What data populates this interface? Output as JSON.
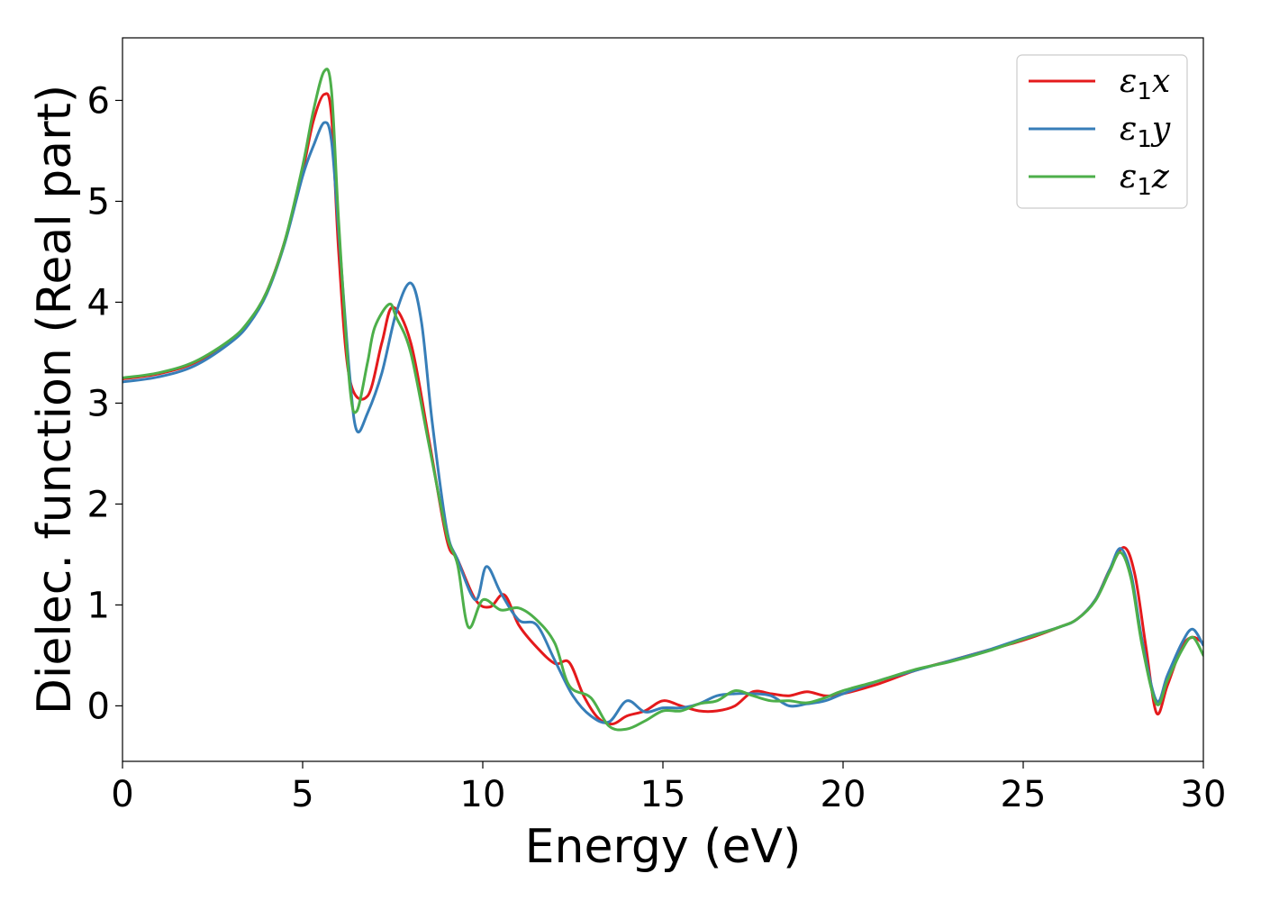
{
  "chart_data": {
    "type": "line",
    "title": "",
    "xlabel": "Energy (eV)",
    "ylabel": "Dielec. function (Real part)",
    "xlim": [
      0,
      30
    ],
    "ylim": [
      -0.55,
      6.62
    ],
    "xticks": [
      0,
      5,
      10,
      15,
      20,
      25,
      30
    ],
    "yticks": [
      0,
      1,
      2,
      3,
      4,
      5,
      6
    ],
    "grid": false,
    "legend_position": "top-right",
    "series": [
      {
        "name": "ε1x",
        "symbol": "ε",
        "sub": "1",
        "suffix": "x",
        "color": "#e41a1c",
        "x": [
          0,
          1,
          2,
          3,
          3.5,
          4,
          4.5,
          5,
          5.3,
          5.6,
          5.8,
          6.0,
          6.3,
          6.8,
          7.2,
          7.5,
          8.0,
          8.5,
          9.0,
          9.3,
          9.8,
          10.2,
          10.6,
          11.0,
          11.5,
          12.0,
          12.4,
          12.8,
          13.2,
          13.6,
          14.0,
          14.5,
          15.0,
          15.5,
          16.0,
          16.5,
          17.0,
          17.5,
          18.0,
          18.5,
          19.0,
          19.5,
          20.0,
          21.0,
          22.0,
          23.0,
          24.0,
          25.0,
          26.0,
          26.5,
          27.0,
          27.4,
          27.8,
          28.1,
          28.4,
          28.7,
          29.0,
          29.4,
          29.7,
          30.0
        ],
        "y": [
          3.24,
          3.29,
          3.4,
          3.62,
          3.8,
          4.1,
          4.6,
          5.3,
          5.8,
          6.06,
          5.85,
          4.5,
          3.25,
          3.07,
          3.6,
          3.95,
          3.6,
          2.65,
          1.65,
          1.45,
          1.05,
          0.98,
          1.1,
          0.8,
          0.58,
          0.42,
          0.43,
          0.1,
          -0.12,
          -0.18,
          -0.1,
          -0.05,
          0.05,
          0.0,
          -0.05,
          -0.05,
          0.0,
          0.14,
          0.12,
          0.1,
          0.14,
          0.1,
          0.12,
          0.22,
          0.35,
          0.45,
          0.55,
          0.65,
          0.78,
          0.86,
          1.05,
          1.35,
          1.57,
          1.3,
          0.6,
          -0.07,
          0.2,
          0.58,
          0.68,
          0.62
        ]
      },
      {
        "name": "ε1y",
        "symbol": "ε",
        "sub": "1",
        "suffix": "y",
        "color": "#377eb8",
        "x": [
          0,
          1,
          2,
          3,
          3.5,
          4,
          4.5,
          5,
          5.3,
          5.6,
          5.8,
          6.0,
          6.3,
          6.5,
          6.8,
          7.2,
          7.6,
          8.0,
          8.3,
          8.6,
          9.0,
          9.3,
          9.8,
          10.1,
          10.5,
          11.0,
          11.5,
          12.0,
          12.5,
          13.0,
          13.5,
          14.0,
          14.5,
          15.0,
          15.5,
          16.0,
          16.5,
          17.0,
          17.5,
          18.0,
          18.5,
          19.0,
          19.5,
          20.0,
          21.0,
          22.0,
          23.0,
          24.0,
          25.0,
          26.0,
          26.5,
          27.0,
          27.4,
          27.7,
          28.0,
          28.3,
          28.7,
          29.0,
          29.4,
          29.7,
          30.0
        ],
        "y": [
          3.21,
          3.26,
          3.37,
          3.6,
          3.78,
          4.08,
          4.58,
          5.25,
          5.55,
          5.78,
          5.6,
          4.7,
          3.3,
          2.73,
          2.9,
          3.3,
          3.9,
          4.19,
          3.8,
          2.8,
          1.75,
          1.45,
          1.05,
          1.38,
          1.12,
          0.85,
          0.8,
          0.45,
          0.1,
          -0.1,
          -0.16,
          0.05,
          -0.06,
          -0.02,
          -0.02,
          0.02,
          0.1,
          0.12,
          0.12,
          0.1,
          0.0,
          0.02,
          0.05,
          0.12,
          0.25,
          0.35,
          0.45,
          0.55,
          0.67,
          0.78,
          0.86,
          1.05,
          1.35,
          1.56,
          1.3,
          0.65,
          0.05,
          0.3,
          0.62,
          0.76,
          0.6
        ]
      },
      {
        "name": "ε1z",
        "symbol": "ε",
        "sub": "1",
        "suffix": "z",
        "color": "#4daf4a",
        "x": [
          0,
          1,
          2,
          3,
          3.5,
          4,
          4.5,
          5,
          5.3,
          5.6,
          5.8,
          6.0,
          6.3,
          6.5,
          6.8,
          7.0,
          7.4,
          7.6,
          8.0,
          8.5,
          9.0,
          9.3,
          9.6,
          10.0,
          10.5,
          11.0,
          11.5,
          12.0,
          12.4,
          13.0,
          13.5,
          14.0,
          14.5,
          15.0,
          15.5,
          16.0,
          16.5,
          17.0,
          17.5,
          18.0,
          18.5,
          19.0,
          19.5,
          20.0,
          21.0,
          22.0,
          23.0,
          24.0,
          25.0,
          26.0,
          26.5,
          27.0,
          27.4,
          27.7,
          28.0,
          28.3,
          28.7,
          29.0,
          29.4,
          29.7,
          30.0
        ],
        "y": [
          3.25,
          3.3,
          3.41,
          3.63,
          3.81,
          4.1,
          4.6,
          5.35,
          5.9,
          6.29,
          6.1,
          4.8,
          3.2,
          2.92,
          3.4,
          3.75,
          3.98,
          3.85,
          3.5,
          2.6,
          1.7,
          1.4,
          0.78,
          1.05,
          0.95,
          0.97,
          0.85,
          0.62,
          0.2,
          0.08,
          -0.2,
          -0.23,
          -0.15,
          -0.05,
          -0.05,
          0.02,
          0.05,
          0.15,
          0.1,
          0.05,
          0.05,
          0.03,
          0.08,
          0.15,
          0.25,
          0.36,
          0.44,
          0.54,
          0.66,
          0.78,
          0.86,
          1.04,
          1.33,
          1.52,
          1.25,
          0.6,
          0.02,
          0.25,
          0.55,
          0.68,
          0.5
        ]
      }
    ]
  }
}
